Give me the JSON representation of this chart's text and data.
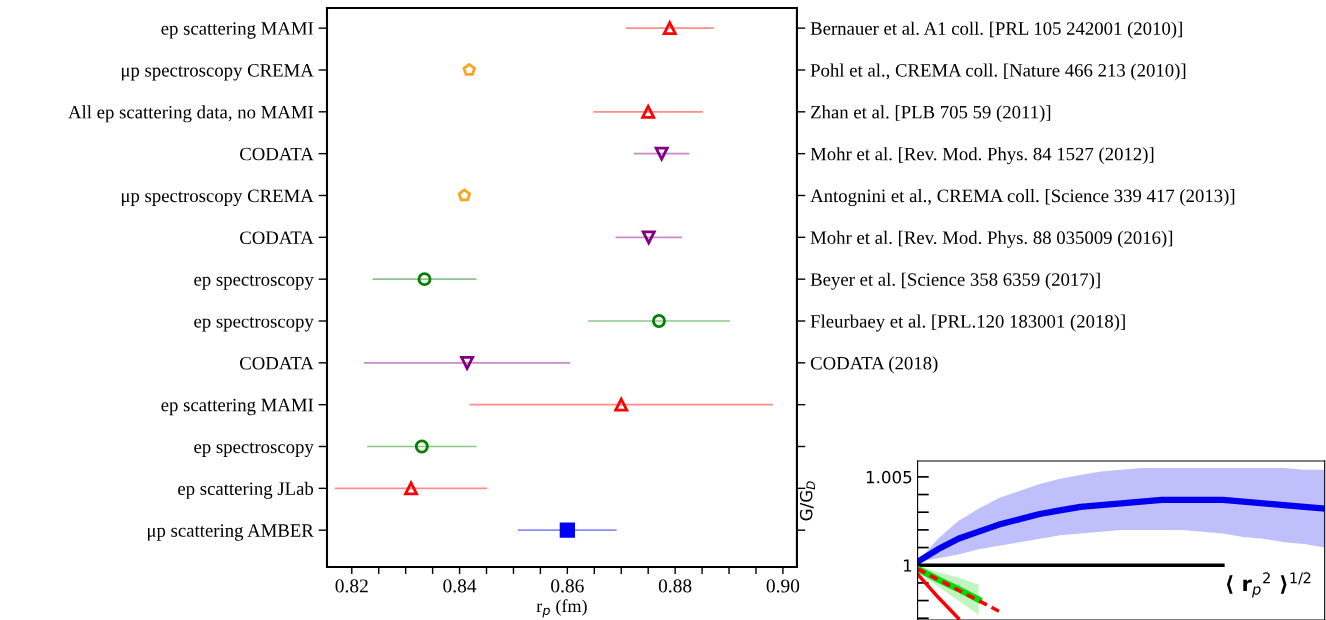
{
  "chart_data": [
    {
      "type": "scatter",
      "orientation": "horizontal",
      "xlabel": "r$_{p}$ (fm)",
      "categories": [
        "ep scattering MAMI",
        "μp spectroscopy CREMA",
        "All ep scattering data, no MAMI",
        "CODATA",
        "μp spectroscopy CREMA",
        "CODATA",
        "ep spectroscopy",
        "ep spectroscopy",
        "CODATA",
        "ep scattering MAMI",
        "ep spectroscopy",
        "ep scattering JLab",
        "μp scattering AMBER"
      ],
      "y2_categories": [
        "Bernauer et al. A1 coll. [PRL 105 242001 (2010)]",
        "Pohl et al., CREMA coll. [Nature 466 213 (2010)]",
        "Zhan et al. [PLB 705 59 (2011)]",
        "Mohr et al. [Rev. Mod. Phys. 84 1527 (2012)]",
        "Antognini et al., CREMA coll. [Science 339 417 (2013)]",
        "Mohr et al. [Rev. Mod. Phys. 88 035009 (2016)]",
        "Beyer et al. [Science 358 6359 (2017)]",
        "Fleurbaey et al. [PRL.120 183001 (2018)]",
        "CODATA (2018)",
        null,
        null,
        null,
        null
      ],
      "series": [
        {
          "color": "#ff0000",
          "marker": "triangle",
          "values": [
            0.879,
            null,
            0.875,
            null,
            null,
            null,
            null,
            null,
            null,
            0.87,
            null,
            0.831,
            null
          ],
          "errors": [
            0.008,
            null,
            0.01,
            null,
            null,
            null,
            null,
            null,
            null,
            0.028,
            null,
            0.014,
            null
          ]
        },
        {
          "color": "#f5a623",
          "values": [
            null,
            0.8418,
            null,
            null,
            0.8409,
            null,
            null,
            null,
            null,
            null,
            null,
            null,
            null
          ],
          "errors": [
            null,
            null,
            null,
            null,
            null,
            null,
            null,
            null,
            null,
            null,
            null,
            null,
            null
          ]
        },
        {
          "color": "#800080",
          "marker": "triangle_down",
          "values": [
            null,
            null,
            null,
            0.8775,
            null,
            0.8751,
            null,
            null,
            0.8414,
            null,
            null,
            null,
            null
          ],
          "errors": [
            null,
            null,
            null,
            0.005,
            null,
            0.006,
            null,
            null,
            0.019,
            null,
            null,
            null,
            null
          ]
        },
        {
          "color": "#008000",
          "marker": "circle",
          "values": [
            null,
            null,
            null,
            null,
            null,
            null,
            0.8335,
            0.877,
            null,
            null,
            0.833,
            null,
            null
          ],
          "errors": [
            null,
            null,
            null,
            null,
            null,
            null,
            0.0095,
            0.013,
            null,
            null,
            0.01,
            null,
            null
          ]
        },
        {
          "color": "#0000ff",
          "marker": "square",
          "values": [
            null,
            null,
            null,
            null,
            null,
            null,
            null,
            null,
            null,
            null,
            null,
            null,
            0.86
          ],
          "errors": [
            null,
            null,
            null,
            null,
            null,
            null,
            null,
            null,
            null,
            null,
            null,
            null,
            0.009
          ]
        }
      ],
      "xlim": [
        0.8154,
        0.9026
      ],
      "xticks": [
        0.82,
        {
          "value": 0.825,
          "label": null
        },
        {
          "value": 0.83,
          "label": null
        },
        {
          "value": 0.835,
          "label": null
        },
        0.84,
        {
          "value": 0.845,
          "label": null
        },
        {
          "value": 0.85,
          "label": null
        },
        {
          "value": 0.855,
          "label": null
        },
        0.86,
        {
          "value": 0.865,
          "label": null
        },
        {
          "value": 0.87,
          "label": null
        },
        {
          "value": 0.875,
          "label": null
        },
        0.88,
        {
          "value": 0.885,
          "label": null
        },
        {
          "value": 0.89,
          "label": null
        },
        {
          "value": 0.895,
          "label": null
        },
        {
          "value": 0.9,
          "label": "0.90"
        }
      ]
    },
    {
      "type": "line",
      "ylabel": "G/G$_{D}$",
      "tick_labels": "y",
      "annotations": [
        "⟨ r$_{p}$$^{2}$ ⟩$^{1/2}$"
      ],
      "categories": [
        null,
        null,
        null,
        null,
        null,
        null,
        null,
        null,
        null,
        null,
        null,
        null,
        null,
        null,
        null,
        null,
        null,
        null,
        null,
        null,
        null
      ],
      "series": [
        {
          "color": "#0000ee",
          "values": [
            1.0002,
            1.0009,
            1.0015,
            1.0019,
            1.0023,
            1.0026,
            1.0029,
            1.0031,
            1.0033,
            1.0034,
            1.0035,
            1.0036,
            1.0037,
            1.0037,
            1.0037,
            1.0037,
            1.0036,
            1.0035,
            1.0034,
            1.0033,
            1.0032
          ],
          "upper": [
            1.0002,
            1.0015,
            1.0025,
            1.0032,
            1.0038,
            1.0042,
            1.0046,
            1.0049,
            1.0051,
            1.0053,
            1.0054,
            1.0055,
            1.0055,
            1.0055,
            1.0055,
            1.0055,
            1.0055,
            1.0055,
            1.0055,
            1.0054,
            1.0054
          ],
          "lower": [
            1.0002,
            1.0004,
            1.0006,
            1.0009,
            1.0011,
            1.0013,
            1.0015,
            1.0017,
            1.0018,
            1.0019,
            1.002,
            1.002,
            1.002,
            1.002,
            1.0019,
            1.0018,
            1.0016,
            1.0015,
            1.0013,
            1.0012,
            1.001
          ]
        },
        {
          "color": "#000000",
          "values": [
            1,
            1,
            1,
            1,
            1,
            1,
            1,
            1,
            1,
            1,
            1,
            1,
            1,
            1,
            1,
            1,
            null,
            null,
            null,
            null,
            null
          ]
        },
        {
          "color": "#00dd00",
          "values": [
            0.9998,
            0.9992,
            0.99865,
            0.99805,
            null,
            null,
            null,
            null,
            null,
            null,
            null,
            null,
            null,
            null,
            null,
            null,
            null,
            null,
            null,
            null,
            null
          ],
          "upper": [
            1.0,
            0.9996,
            0.9993,
            0.9989,
            null,
            null,
            null,
            null,
            null,
            null,
            null,
            null,
            null,
            null,
            null,
            null,
            null,
            null,
            null,
            null,
            null
          ],
          "lower": [
            0.9996,
            0.9988,
            0.998,
            0.9972,
            null,
            null,
            null,
            null,
            null,
            null,
            null,
            null,
            null,
            null,
            null,
            null,
            null,
            null,
            null,
            null,
            null
          ]
        },
        {
          "color": "#ff0000",
          "line_style": "dashed",
          "values": [
            0.9998,
            0.9992,
            0.9986,
            0.998,
            0.9974,
            null,
            null,
            null,
            null,
            null,
            null,
            null,
            null,
            null,
            null,
            null,
            null,
            null,
            null,
            null,
            null
          ]
        },
        {
          "color": "#ff0000",
          "values": [
            0.9995,
            0.9982,
            0.997,
            null,
            null,
            null,
            null,
            null,
            null,
            null,
            null,
            null,
            null,
            null,
            null,
            null,
            null,
            null,
            null,
            null,
            null
          ]
        }
      ],
      "ylim": [
        0.9969,
        1.0059
      ],
      "yticks": [
        {
          "value": 0.997,
          "label": null
        },
        {
          "value": 0.998,
          "label": null
        },
        {
          "value": 0.999,
          "label": null
        },
        1,
        {
          "value": 1.001,
          "label": null
        },
        {
          "value": 1.002,
          "label": null
        },
        {
          "value": 1.003,
          "label": null
        },
        {
          "value": 1.004,
          "label": null
        },
        1.005
      ]
    }
  ]
}
